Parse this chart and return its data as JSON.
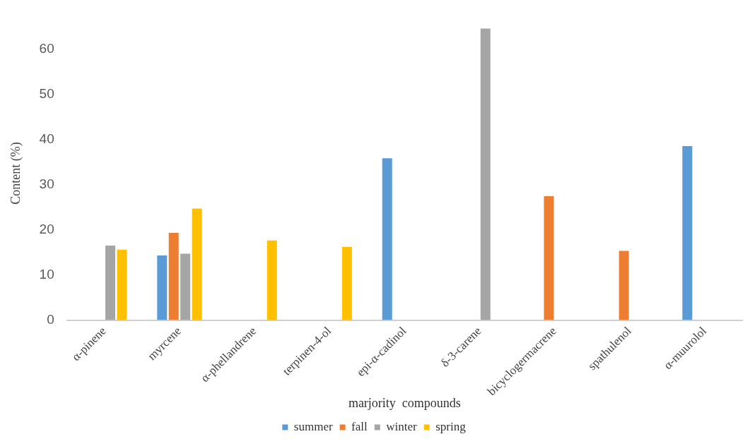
{
  "chart_data": {
    "type": "bar",
    "xlabel": "marjority  compounds",
    "ylabel": "Content (%)",
    "categories": [
      "α-pinene",
      "myrcene",
      "α-phellandrene",
      "terpinen-4-ol",
      "epi-α-cadinol",
      "δ-3-carene",
      "bicyclogermacrene",
      "spathulenol",
      "α-muurolol"
    ],
    "series": [
      {
        "name": "summer",
        "color": "#5b9bd5",
        "values": [
          null,
          14.3,
          null,
          null,
          35.8,
          null,
          null,
          null,
          38.5
        ]
      },
      {
        "name": "fall",
        "color": "#ed7d31",
        "values": [
          null,
          19.3,
          null,
          null,
          null,
          null,
          27.4,
          15.3,
          null
        ]
      },
      {
        "name": "winter",
        "color": "#a5a5a5",
        "values": [
          16.5,
          14.7,
          null,
          null,
          null,
          64.5,
          null,
          null,
          null
        ]
      },
      {
        "name": "spring",
        "color": "#ffc000",
        "values": [
          15.6,
          24.7,
          17.6,
          16.2,
          null,
          null,
          null,
          null,
          null
        ]
      }
    ],
    "ylim": [
      0,
      65
    ],
    "yticks": [
      0,
      10,
      20,
      30,
      40,
      50,
      60
    ],
    "grid": false,
    "legend": "bottom"
  }
}
